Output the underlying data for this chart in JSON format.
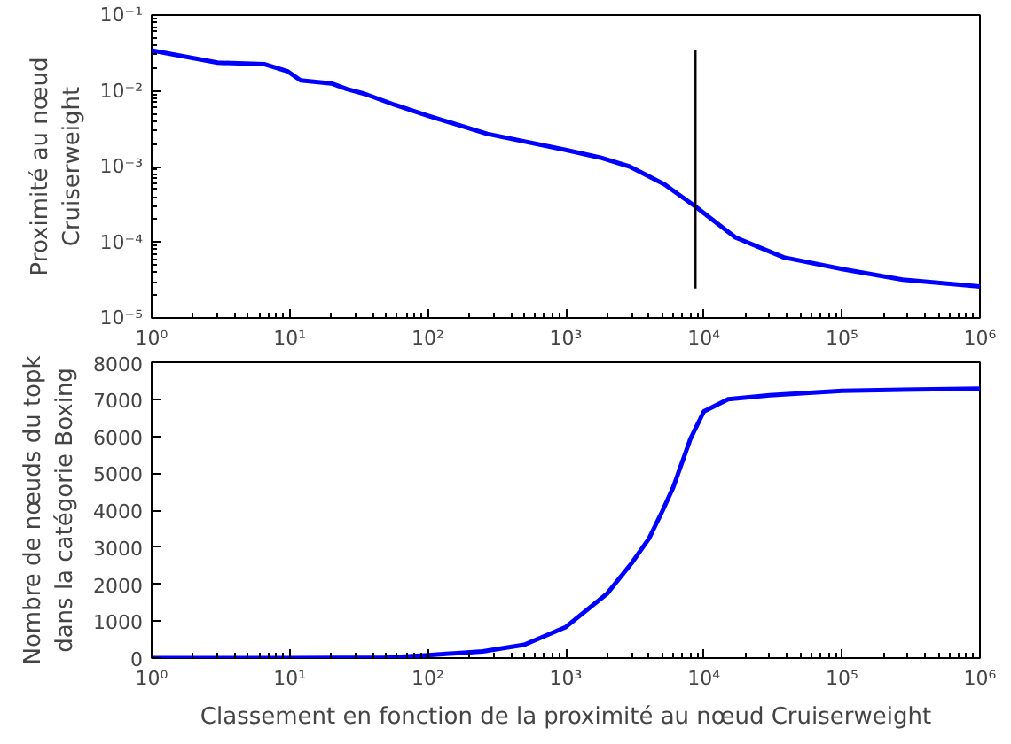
{
  "chart_data": [
    {
      "type": "line",
      "ylabel": "Proximité au nœud\nCruiserweight",
      "log": "xy",
      "grid": false,
      "xlim": [
        1,
        1000000
      ],
      "ylim": [
        1e-05,
        0.1
      ],
      "xticks": [
        {
          "value": 1,
          "label": "10⁰"
        },
        {
          "value": 10,
          "label": "10¹"
        },
        {
          "value": 100,
          "label": "10²"
        },
        {
          "value": 1000,
          "label": "10³"
        },
        {
          "value": 10000,
          "label": "10⁴"
        },
        {
          "value": 100000,
          "label": "10⁵"
        },
        {
          "value": 1000000,
          "label": "10⁶"
        }
      ],
      "yticks": [
        {
          "value": 1e-05,
          "label": "10⁻⁵"
        },
        {
          "value": 0.0001,
          "label": "10⁻⁴"
        },
        {
          "value": 0.001,
          "label": "10⁻³"
        },
        {
          "value": 0.01,
          "label": "10⁻²"
        },
        {
          "value": 0.1,
          "label": "10⁻¹"
        }
      ],
      "series": [
        {
          "color": "#0000ff",
          "x": [
            1,
            3,
            6.6,
            9.7,
            12,
            20,
            26,
            35,
            58,
            100,
            270,
            980,
            1780,
            2900,
            5200,
            8700,
            17000,
            38000,
            102000,
            276000,
            1000000
          ],
          "values": [
            0.034,
            0.0235,
            0.0224,
            0.018,
            0.0137,
            0.0125,
            0.0105,
            0.0091,
            0.0065,
            0.0047,
            0.0027,
            0.00167,
            0.00131,
            0.001,
            0.00058,
            0.000295,
            0.000115,
            6.3e-05,
            4.4e-05,
            3.2e-05,
            2.6e-05
          ]
        },
        {
          "type": "line",
          "color": "#000000",
          "x": [
            8700,
            8700
          ],
          "values": [
            0.035,
            2.45e-05
          ]
        }
      ]
    },
    {
      "type": "line",
      "xlabel": "Classement en fonction de la proximité au nœud Cruiserweight",
      "ylabel": "Nombre de nœuds du topk\ndans la catégorie Boxing",
      "log": "x",
      "grid": false,
      "xlim": [
        1,
        1000000
      ],
      "ylim": [
        0,
        8000
      ],
      "xticks": [
        {
          "value": 1,
          "label": "10⁰"
        },
        {
          "value": 10,
          "label": "10¹"
        },
        {
          "value": 100,
          "label": "10²"
        },
        {
          "value": 1000,
          "label": "10³"
        },
        {
          "value": 10000,
          "label": "10⁴"
        },
        {
          "value": 100000,
          "label": "10⁵"
        },
        {
          "value": 1000000,
          "label": "10⁶"
        }
      ],
      "yticks": [
        0,
        1000,
        2000,
        3000,
        4000,
        5000,
        6000,
        7000,
        8000
      ],
      "series": [
        {
          "color": "#0000ff",
          "x": [
            1,
            10,
            50,
            100,
            250,
            500,
            1000,
            2000,
            3000,
            4000,
            5000,
            6000,
            8000,
            10000,
            15000,
            30000,
            100000,
            1000000
          ],
          "values": [
            0,
            0,
            10,
            80,
            180,
            360,
            840,
            1750,
            2570,
            3230,
            3970,
            4620,
            5930,
            6670,
            7000,
            7110,
            7230,
            7290
          ]
        }
      ]
    }
  ]
}
